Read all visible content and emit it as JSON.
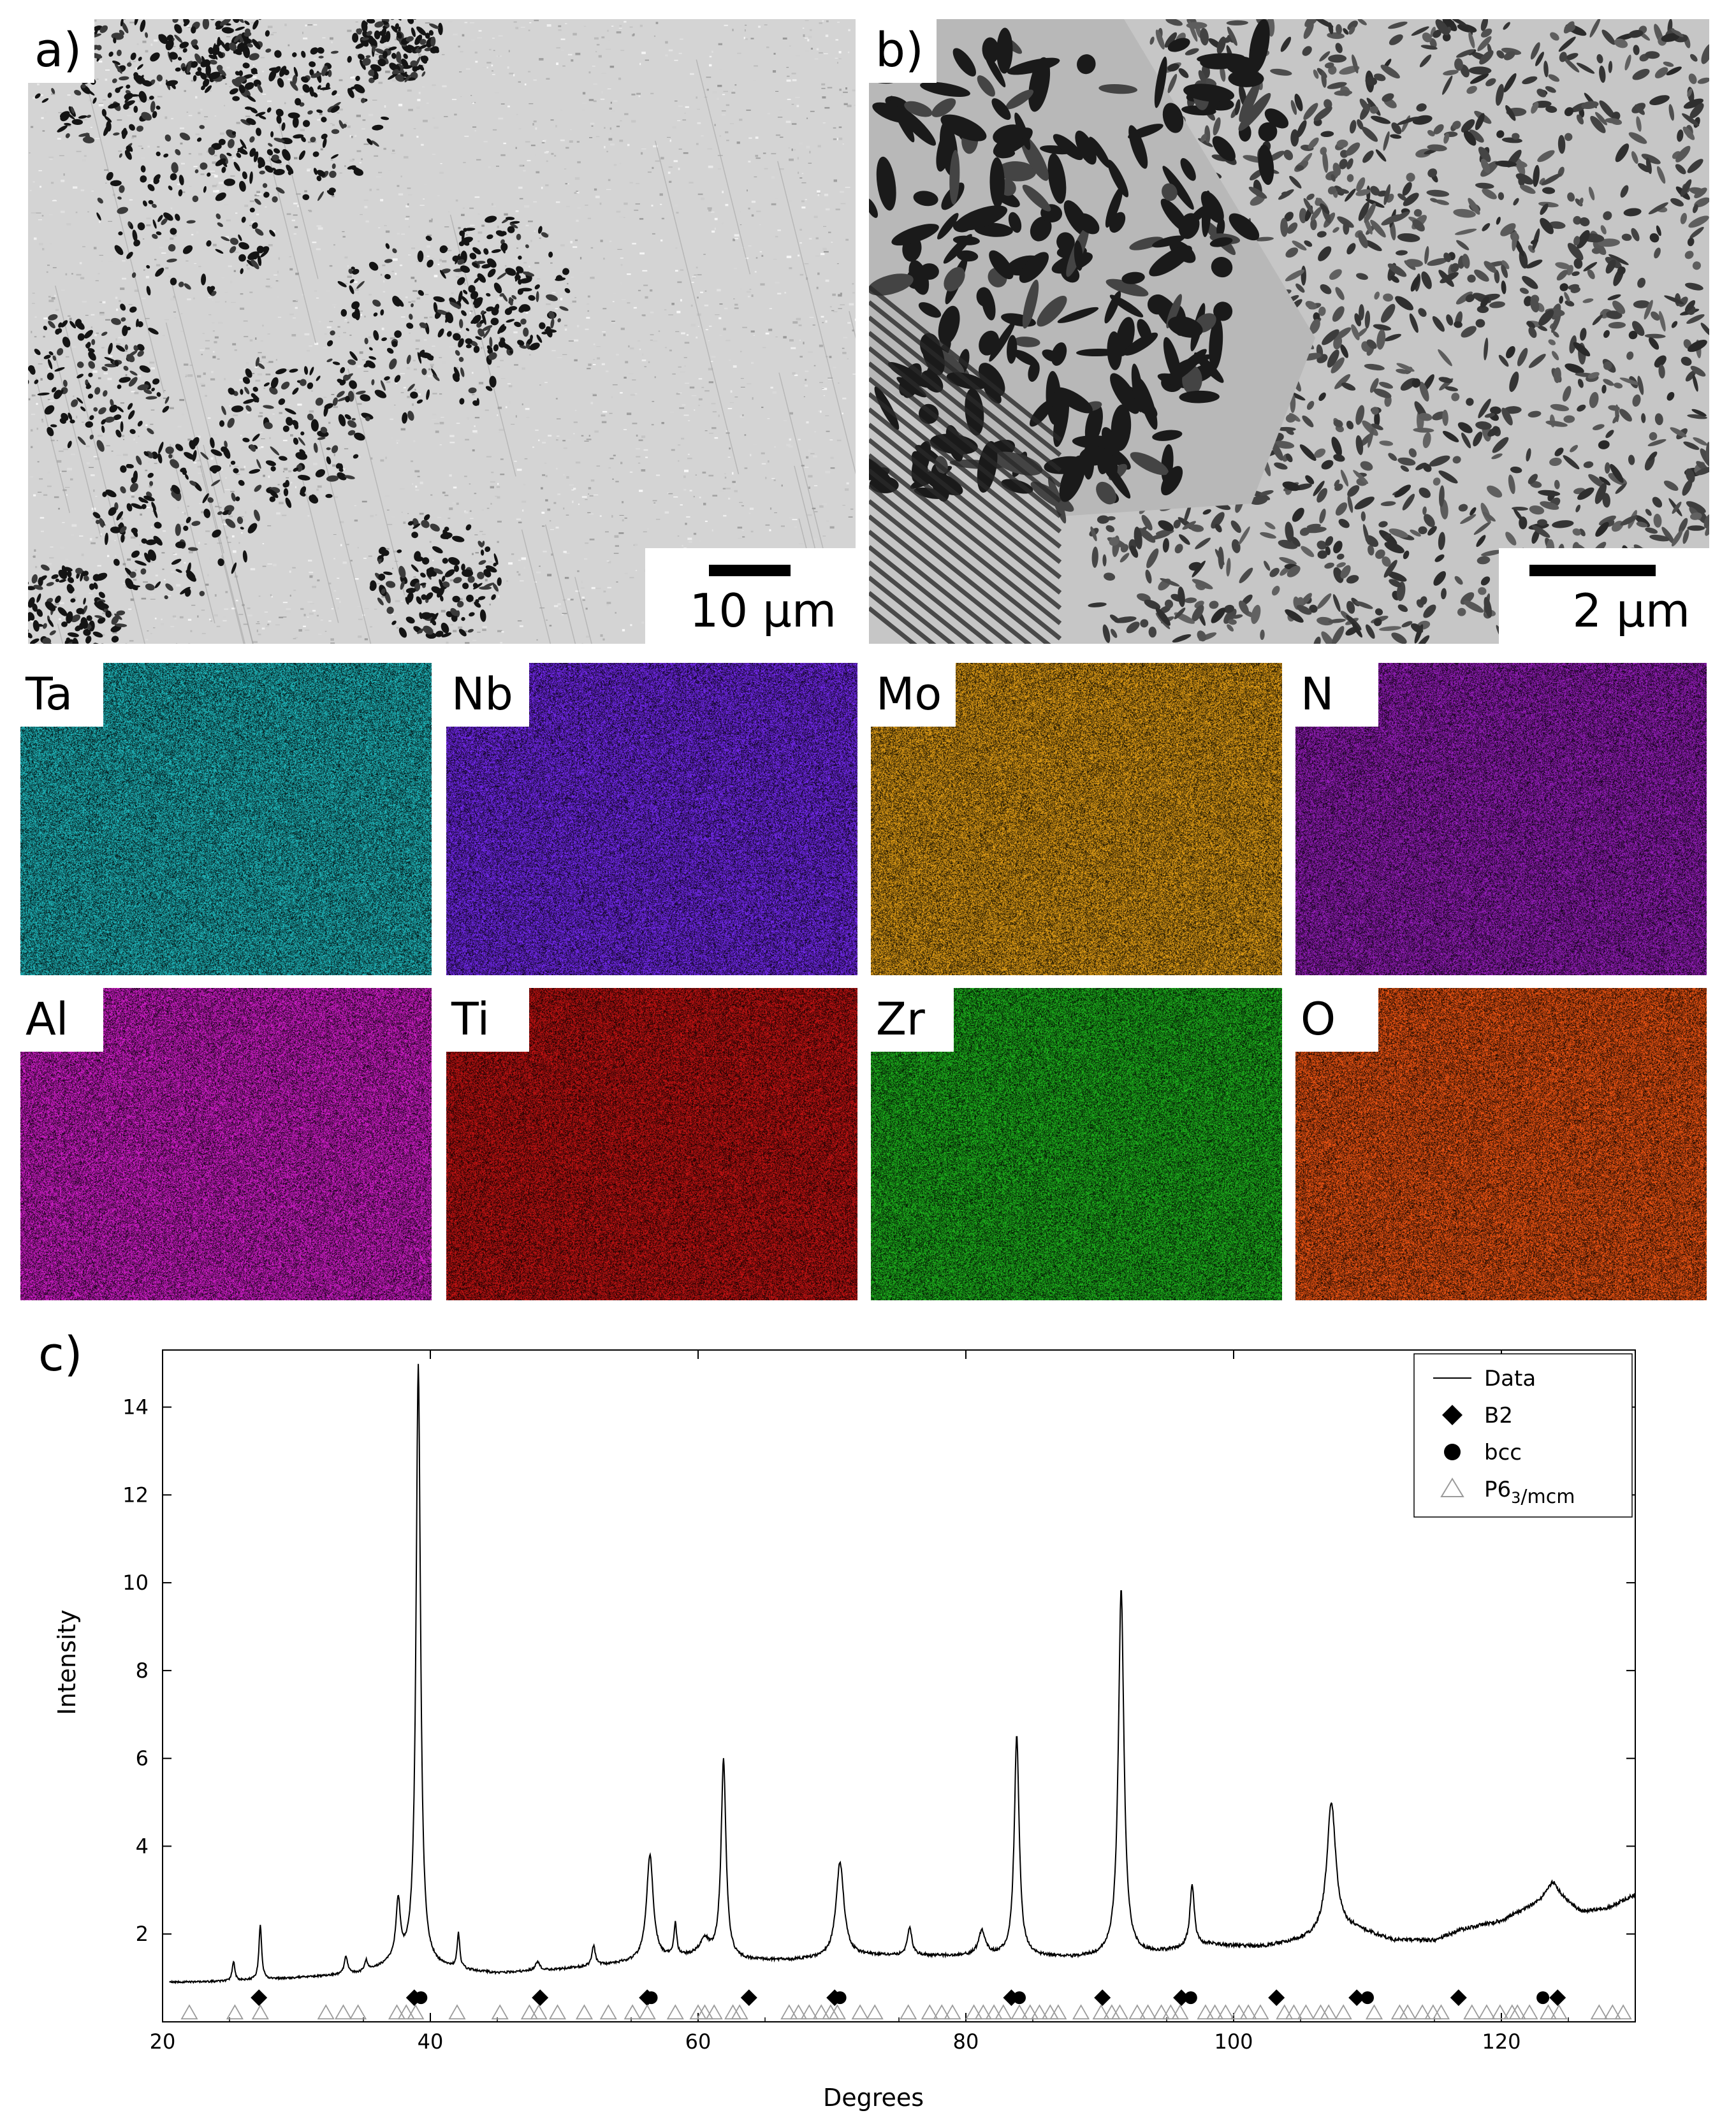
{
  "panels": {
    "a": {
      "label": "a)",
      "scale": "10 µm"
    },
    "b": {
      "label": "b)",
      "scale": "2 µm"
    }
  },
  "eds_maps": [
    {
      "element": "Ta",
      "color": "#22c3c8"
    },
    {
      "element": "Nb",
      "color": "#7b2cff"
    },
    {
      "element": "Mo",
      "color": "#f0a818"
    },
    {
      "element": "N",
      "color": "#a020c8"
    },
    {
      "element": "Al",
      "color": "#e020d8"
    },
    {
      "element": "Ti",
      "color": "#d01414"
    },
    {
      "element": "Zr",
      "color": "#20c020"
    },
    {
      "element": "O",
      "color": "#ff5a14"
    }
  ],
  "chart_data": {
    "panel_label": "c)",
    "type": "line",
    "xlabel": "Degrees",
    "ylabel": "Intensity",
    "xlim": [
      20,
      130
    ],
    "ylim": [
      0,
      15.3
    ],
    "xticks": [
      20,
      40,
      60,
      80,
      100,
      120
    ],
    "yticks": [
      2,
      4,
      6,
      8,
      10,
      12,
      14
    ],
    "legend": {
      "placement": "top-right",
      "entries": [
        {
          "name": "Data",
          "marker": "line"
        },
        {
          "name": "B2",
          "marker": "diamond"
        },
        {
          "name": "bcc",
          "marker": "circle"
        },
        {
          "name": "P6",
          "sub": "3",
          "suffix": "/mcm",
          "marker": "triangle-open"
        }
      ]
    },
    "baseline": [
      [
        20.5,
        0.9
      ],
      [
        25,
        0.92
      ],
      [
        30,
        1.0
      ],
      [
        35,
        1.1
      ],
      [
        37,
        1.3
      ],
      [
        41,
        1.2
      ],
      [
        45,
        1.1
      ],
      [
        50,
        1.2
      ],
      [
        55,
        1.35
      ],
      [
        60,
        1.5
      ],
      [
        63,
        1.4
      ],
      [
        67,
        1.4
      ],
      [
        72,
        1.5
      ],
      [
        76,
        1.5
      ],
      [
        80,
        1.5
      ],
      [
        84,
        1.5
      ],
      [
        88,
        1.45
      ],
      [
        92,
        1.5
      ],
      [
        95,
        1.6
      ],
      [
        98,
        1.75
      ],
      [
        102,
        1.7
      ],
      [
        105,
        1.85
      ],
      [
        109,
        2.1
      ],
      [
        112,
        1.85
      ],
      [
        115,
        1.85
      ],
      [
        117,
        2.1
      ],
      [
        120,
        2.3
      ],
      [
        122,
        2.6
      ],
      [
        124,
        2.9
      ],
      [
        126,
        2.5
      ],
      [
        128,
        2.6
      ],
      [
        130,
        2.9
      ]
    ],
    "peaks": [
      {
        "x": 25.3,
        "h": 0.45,
        "w": 0.12
      },
      {
        "x": 27.3,
        "h": 1.25,
        "w": 0.12
      },
      {
        "x": 33.7,
        "h": 0.4,
        "w": 0.15
      },
      {
        "x": 35.2,
        "h": 0.25,
        "w": 0.15
      },
      {
        "x": 37.6,
        "h": 1.35,
        "w": 0.2
      },
      {
        "x": 39.1,
        "h": 13.7,
        "w": 0.2
      },
      {
        "x": 42.1,
        "h": 0.8,
        "w": 0.12
      },
      {
        "x": 48.0,
        "h": 0.2,
        "w": 0.2
      },
      {
        "x": 52.2,
        "h": 0.45,
        "w": 0.15
      },
      {
        "x": 56.4,
        "h": 2.4,
        "w": 0.3
      },
      {
        "x": 58.3,
        "h": 0.75,
        "w": 0.12
      },
      {
        "x": 60.5,
        "h": 0.35,
        "w": 0.4
      },
      {
        "x": 61.9,
        "h": 4.5,
        "w": 0.22
      },
      {
        "x": 70.6,
        "h": 2.15,
        "w": 0.35
      },
      {
        "x": 75.8,
        "h": 0.65,
        "w": 0.2
      },
      {
        "x": 81.2,
        "h": 0.55,
        "w": 0.3
      },
      {
        "x": 83.8,
        "h": 5.0,
        "w": 0.22
      },
      {
        "x": 91.6,
        "h": 8.35,
        "w": 0.25
      },
      {
        "x": 96.9,
        "h": 1.4,
        "w": 0.2
      },
      {
        "x": 107.3,
        "h": 3.0,
        "w": 0.4
      },
      {
        "x": 123.8,
        "h": 0.3,
        "w": 0.5
      }
    ],
    "b2_markers": [
      27.2,
      38.8,
      48.2,
      56.2,
      63.8,
      70.2,
      83.4,
      90.2,
      96.1,
      103.2,
      109.2,
      116.8,
      124.2
    ],
    "bcc_markers": [
      39.3,
      56.5,
      70.6,
      84.0,
      96.8,
      110.0,
      123.1
    ],
    "marker_y": 0.55,
    "hex_markers_y": 0.2,
    "hex_markers": [
      22.0,
      25.4,
      27.3,
      32.2,
      33.5,
      34.6,
      37.5,
      38.2,
      38.9,
      42.0,
      45.2,
      47.4,
      48.1,
      49.5,
      51.5,
      53.3,
      55.1,
      56.2,
      58.3,
      60.0,
      60.5,
      61.2,
      62.6,
      63.1,
      66.8,
      67.5,
      68.3,
      69.2,
      69.9,
      70.4,
      72.1,
      73.2,
      75.7,
      77.3,
      78.2,
      79.0,
      80.6,
      81.3,
      82.1,
      82.8,
      84.0,
      84.8,
      85.5,
      86.3,
      86.9,
      88.6,
      90.1,
      90.9,
      91.5,
      92.8,
      93.6,
      94.6,
      95.3,
      96.0,
      97.9,
      98.6,
      99.4,
      100.4,
      101.1,
      102.0,
      103.8,
      104.5,
      105.4,
      106.5,
      107.1,
      108.2,
      110.5,
      112.4,
      113.0,
      114.1,
      114.9,
      115.5,
      117.8,
      118.9,
      119.9,
      120.8,
      121.2,
      122.1,
      123.5,
      124.3,
      127.3,
      128.3,
      129.1
    ]
  }
}
